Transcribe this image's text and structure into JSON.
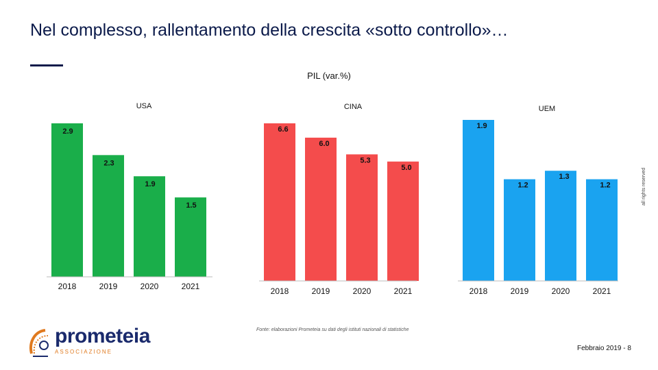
{
  "title": "Nel complesso, rallentamento della crescita «sotto controllo»…",
  "subtitle": "PIL (var.%)",
  "side_note": "all rights reserved",
  "source": "Fonte: elaborazioni Prometeia su dati degli istituti nazionali di statistiche",
  "footer": {
    "date_page": "Febbraio 2019 - 8"
  },
  "logo": {
    "name": "prometeia",
    "sub": "ASSOCIAZIONE"
  },
  "colors": {
    "usa": "#1aae4a",
    "cina": "#f44c4c",
    "uem": "#1aa3f0",
    "title": "#0b1a4a"
  },
  "chart_data": [
    {
      "type": "bar",
      "title": "USA",
      "categories": [
        "2018",
        "2019",
        "2020",
        "2021"
      ],
      "values": [
        2.9,
        2.3,
        1.9,
        1.5
      ],
      "labels": [
        "2.9",
        "2.3",
        "1.9",
        "1.5"
      ],
      "ylim": [
        0,
        3.3
      ]
    },
    {
      "type": "bar",
      "title": "CINA",
      "categories": [
        "2018",
        "2019",
        "2020",
        "2021"
      ],
      "values": [
        6.6,
        6.0,
        5.3,
        5.0
      ],
      "labels": [
        "6.6",
        "6.0",
        "5.3",
        "5.0"
      ],
      "ylim": [
        0,
        7.2
      ]
    },
    {
      "type": "bar",
      "title": "UEM",
      "categories": [
        "2018",
        "2019",
        "2020",
        "2021"
      ],
      "values": [
        1.9,
        1.2,
        1.3,
        1.2
      ],
      "labels": [
        "1.9",
        "1.2",
        "1.3",
        "1.2"
      ],
      "ylim": [
        0,
        2.0
      ]
    }
  ]
}
